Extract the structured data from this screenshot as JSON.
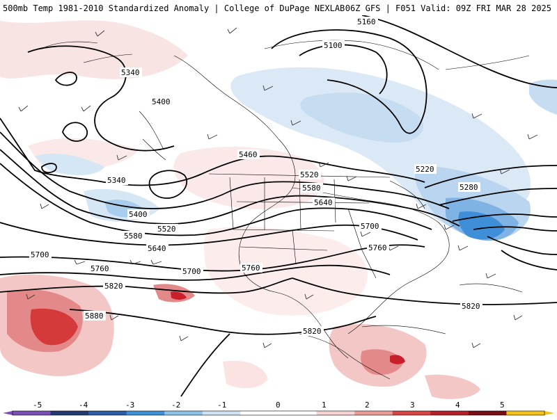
{
  "header": {
    "left": "500mb Temp 1981-2010 Standardized Anomaly | College of DuPage NEXLAB",
    "right": "06Z GFS | F051 Valid: 09Z FRI MAR 28 2025"
  },
  "contour_labels": [
    "5160",
    "5100",
    "5340",
    "5400",
    "5340",
    "5460",
    "5520",
    "5580",
    "5640",
    "5220",
    "5280",
    "5400",
    "5520",
    "5580",
    "5640",
    "5700",
    "5700",
    "5760",
    "5700",
    "5760",
    "5760",
    "5820",
    "5880",
    "5820",
    "5820"
  ],
  "legend": {
    "ticks": [
      "-5",
      "-4",
      "-3",
      "-2",
      "-1",
      "0",
      "1",
      "2",
      "3",
      "4",
      "5"
    ],
    "colors": [
      "#7a4fb5",
      "#1f3a73",
      "#2b5ca8",
      "#3d8fd6",
      "#8ec1e8",
      "#cfe2f3",
      "#ffffff",
      "#ffffff",
      "#f6d3d3",
      "#ec9b9b",
      "#d94545",
      "#b51f2a",
      "#7a0e16",
      "#f2c218"
    ]
  }
}
